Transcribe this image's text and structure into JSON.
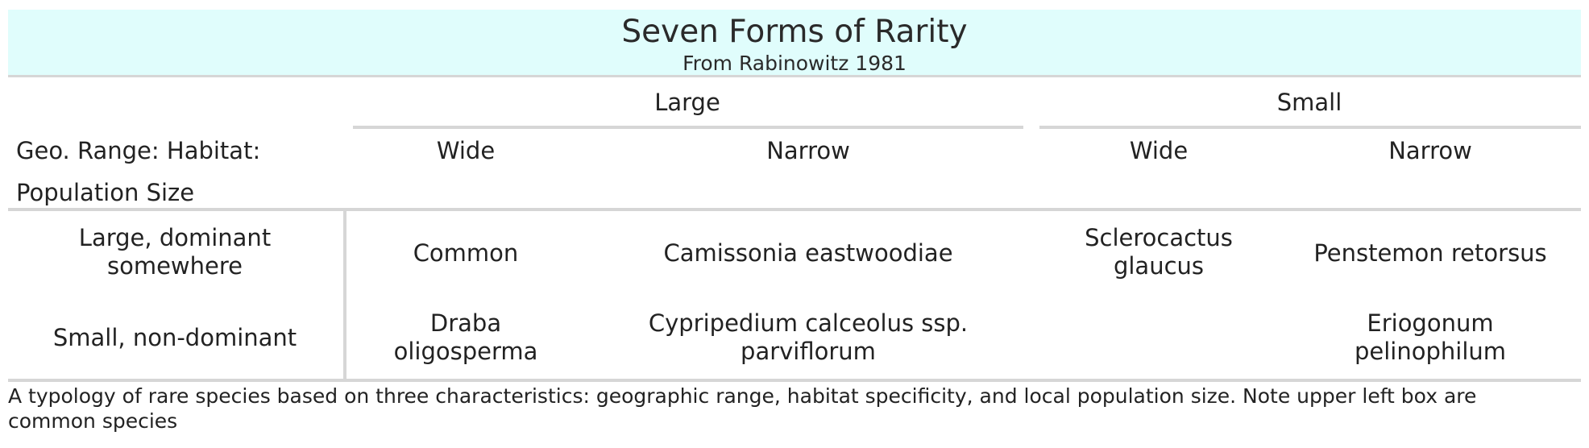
{
  "table": {
    "title": "Seven Forms of Rarity",
    "subtitle": "From Rabinowitz 1981",
    "group_headers": [
      "Large",
      "Small"
    ],
    "corner_label_1": "Geo. Range: Habitat:",
    "corner_label_2": "Population Size",
    "column_headers": [
      "Wide",
      "Narrow",
      "Wide",
      "Narrow"
    ],
    "rows": [
      {
        "label": "Large, dominant somewhere",
        "cells": [
          "Common",
          "Camissonia eastwoodiae",
          "Sclerocactus glaucus",
          "Penstemon retorsus"
        ]
      },
      {
        "label": "Small, non-dominant",
        "cells": [
          "Draba oligosperma",
          "Cypripedium calceolus ssp. parviflorum",
          "",
          "Eriogonum pelinophilum"
        ]
      }
    ],
    "note": "A typology of rare species based on three characteristics: geographic range, habitat specificity, and local population size. Note upper left box are common species",
    "colors": {
      "title_background": "#e0fdfc",
      "rule": "#d6d6d6",
      "text": "#222222"
    }
  }
}
